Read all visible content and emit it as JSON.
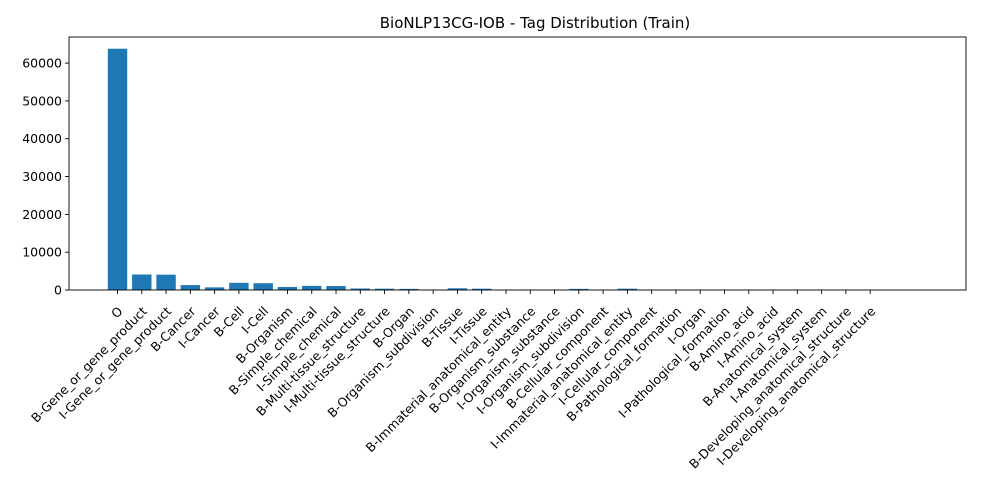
{
  "chart_data": {
    "type": "bar",
    "title": "BioNLP13CG-IOB - Tag Distribution (Train)",
    "xlabel": "",
    "ylabel": "",
    "ylim": [
      0,
      66900
    ],
    "yticks": [
      0,
      10000,
      20000,
      30000,
      40000,
      50000,
      60000
    ],
    "grid": false,
    "bar_color": "#1f77b4",
    "categories": [
      "O",
      "B-Gene_or_gene_product",
      "I-Gene_or_gene_product",
      "B-Cancer",
      "I-Cancer",
      "B-Cell",
      "I-Cell",
      "B-Organism",
      "B-Simple_chemical",
      "I-Simple_chemical",
      "B-Multi-tissue_structure",
      "I-Multi-tissue_structure",
      "B-Organ",
      "B-Organism_subdivision",
      "B-Tissue",
      "I-Tissue",
      "B-Immaterial_anatomical_entity",
      "B-Organism_substance",
      "I-Organism_substance",
      "I-Organism_subdivision",
      "B-Cellular_component",
      "I-Immaterial_anatomical_entity",
      "I-Cellular_component",
      "B-Pathological_formation",
      "I-Organ",
      "I-Pathological_formation",
      "B-Amino_acid",
      "I-Amino_acid",
      "B-Anatomical_system",
      "I-Anatomical_system",
      "B-Developing_anatomical_structure",
      "I-Developing_anatomical_structure"
    ],
    "values": [
      63800,
      4100,
      4050,
      1300,
      700,
      1900,
      1800,
      800,
      1100,
      1050,
      400,
      350,
      300,
      100,
      450,
      350,
      50,
      100,
      60,
      300,
      40,
      350,
      50,
      60,
      30,
      70,
      40,
      30,
      30,
      20,
      20,
      20
    ]
  }
}
